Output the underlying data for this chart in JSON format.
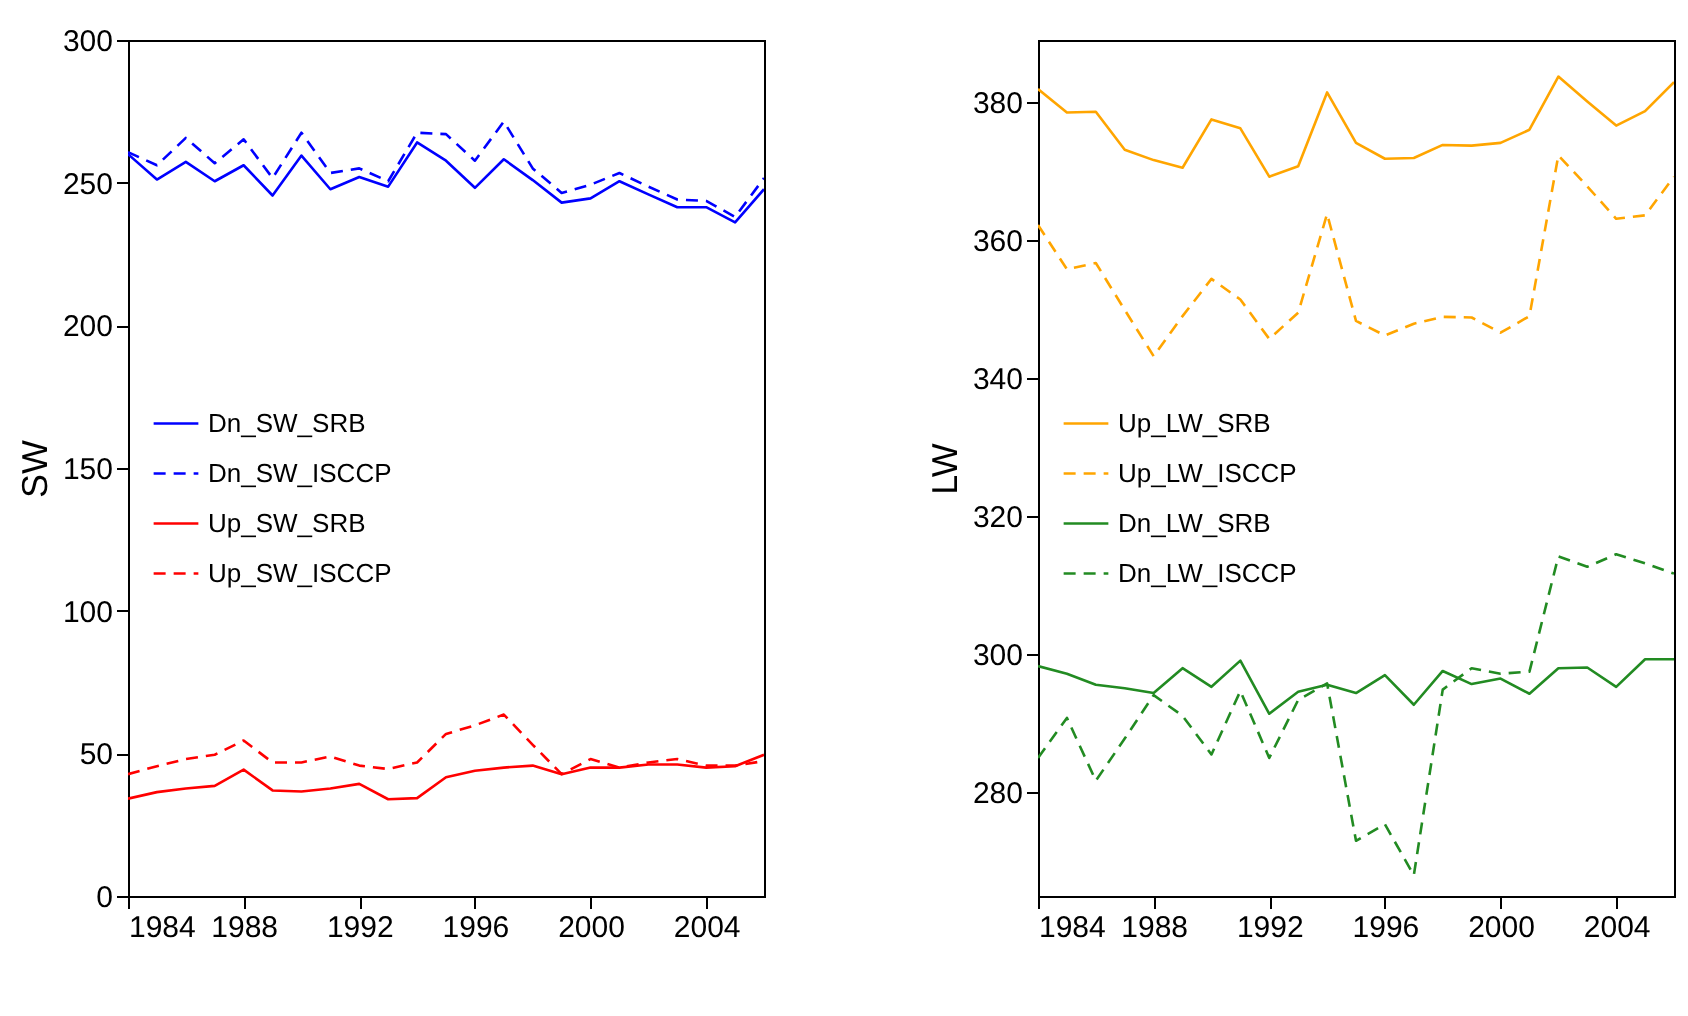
{
  "chart_data": [
    {
      "type": "line",
      "ylabel": "SW",
      "x": [
        1984,
        1985,
        1986,
        1987,
        1988,
        1989,
        1990,
        1991,
        1992,
        1993,
        1994,
        1995,
        1996,
        1997,
        1998,
        1999,
        2000,
        2001,
        2002,
        2003,
        2004,
        2005,
        2006
      ],
      "xlim": [
        1984,
        2006
      ],
      "xticks": [
        1984,
        1988,
        1992,
        1996,
        2000,
        2004
      ],
      "ylim": [
        0,
        300
      ],
      "yticks": [
        0,
        50,
        100,
        150,
        200,
        250,
        300
      ],
      "grid": false,
      "legend": "left",
      "series": [
        {
          "name": "Dn_SW_SRB",
          "color": "#0000ff",
          "line_style": "solid",
          "values": [
            260,
            251.1,
            257.3,
            250.5,
            256.1,
            245.5,
            259.5,
            247.7,
            252,
            248.6,
            264.1,
            257.7,
            248.2,
            258.2,
            250.9,
            243,
            244.5,
            250.5,
            245.9,
            241.4,
            241.4,
            236.1,
            247.7
          ]
        },
        {
          "name": "Dn_SW_ISCCP",
          "color": "#0000ff",
          "line_style": "dashed",
          "values": [
            260.7,
            256.1,
            265.7,
            256.8,
            265.2,
            251.6,
            267.5,
            253.4,
            255,
            250.5,
            267.5,
            267,
            257.7,
            271.4,
            255,
            246.4,
            249.3,
            253.4,
            248.6,
            244.1,
            243.6,
            238,
            251.6
          ]
        },
        {
          "name": "Up_SW_SRB",
          "color": "#ff0000",
          "line_style": "solid",
          "values": [
            34.1,
            36.4,
            37.7,
            38.6,
            44.3,
            37,
            36.6,
            37.7,
            39.3,
            33.9,
            34.3,
            41.6,
            43.9,
            45,
            45.7,
            42.7,
            45,
            45,
            46.1,
            46.1,
            45,
            45.5,
            49.5
          ]
        },
        {
          "name": "Up_SW_ISCCP",
          "color": "#ff0000",
          "line_style": "dashed",
          "values": [
            42.7,
            45.5,
            48,
            49.5,
            54.5,
            46.8,
            46.8,
            48.9,
            45.7,
            44.5,
            46.8,
            56.8,
            59.8,
            63.6,
            53,
            42.7,
            48,
            45,
            46.8,
            48,
            45.7,
            45.7,
            47.3
          ]
        }
      ]
    },
    {
      "type": "line",
      "ylabel": "LW",
      "x": [
        1984,
        1985,
        1986,
        1987,
        1988,
        1989,
        1990,
        1991,
        1992,
        1993,
        1994,
        1995,
        1996,
        1997,
        1998,
        1999,
        2000,
        2001,
        2002,
        2003,
        2004,
        2005,
        2006
      ],
      "xlim": [
        1984,
        2006
      ],
      "xticks": [
        1984,
        1988,
        1992,
        1996,
        2000,
        2004
      ],
      "ylim": [
        265,
        389
      ],
      "yticks": [
        280,
        300,
        320,
        340,
        360,
        380
      ],
      "grid": false,
      "legend": "left",
      "series": [
        {
          "name": "Up_LW_SRB",
          "color": "#ffa500",
          "line_style": "solid",
          "values": [
            381.9,
            378.5,
            378.6,
            373.1,
            371.6,
            370.5,
            377.5,
            376.2,
            369.2,
            370.7,
            381.4,
            374.1,
            371.8,
            371.9,
            373.8,
            373.7,
            374.1,
            376,
            383.7,
            380.1,
            376.6,
            378.7,
            382.9
          ]
        },
        {
          "name": "Up_LW_ISCCP",
          "color": "#ffa500",
          "line_style": "dashed",
          "values": [
            362.2,
            355.8,
            356.7,
            349.9,
            343.2,
            349,
            354.4,
            351.4,
            345.7,
            349.5,
            363.8,
            348.3,
            346.2,
            347.9,
            348.9,
            348.8,
            346.6,
            349,
            372.3,
            367.8,
            363.1,
            363.6,
            369.2
          ]
        },
        {
          "name": "Dn_LW_SRB",
          "color": "#228b22",
          "line_style": "solid",
          "values": [
            298.3,
            297.2,
            295.6,
            295.1,
            294.4,
            298,
            295.3,
            299.1,
            291.4,
            294.6,
            295.6,
            294.4,
            297,
            292.7,
            297.6,
            295.7,
            296.5,
            294.3,
            298,
            298.1,
            295.3,
            299.3,
            299.3
          ]
        },
        {
          "name": "Dn_LW_ISCCP",
          "color": "#228b22",
          "line_style": "dashed",
          "values": [
            285,
            290.8,
            281.7,
            287.8,
            294.1,
            291.1,
            285.5,
            294.7,
            285,
            293.4,
            295.8,
            273,
            275.4,
            268,
            294.9,
            298,
            297.2,
            297.5,
            314.2,
            312.7,
            314.5,
            313.2,
            311.7
          ]
        }
      ]
    }
  ]
}
